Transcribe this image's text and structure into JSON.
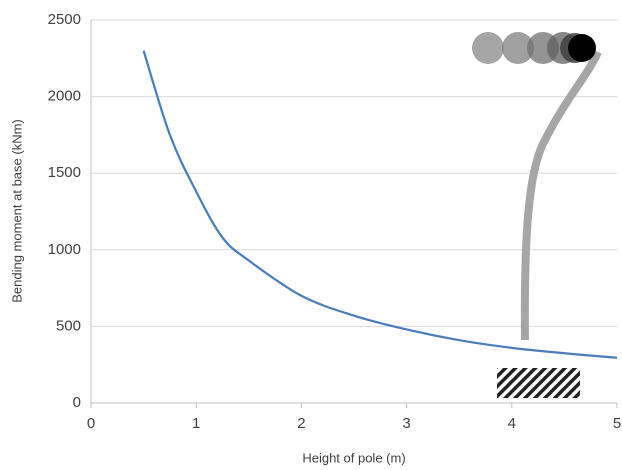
{
  "chart_data": {
    "type": "line",
    "x_label": "Height of pole (m)",
    "y_label": "Bending moment at base (kNm)",
    "x": [
      0.5,
      0.75,
      1,
      1.25,
      1.5,
      2,
      2.5,
      3,
      3.5,
      4,
      4.5,
      5
    ],
    "values": [
      2300,
      1750,
      1380,
      1080,
      930,
      700,
      570,
      480,
      410,
      360,
      325,
      295
    ],
    "color": "#4a7ebb",
    "xlim": [
      0,
      5
    ],
    "xticks": [
      0,
      1,
      2,
      3,
      4,
      5
    ],
    "ylim": [
      0,
      2500
    ],
    "yticks": [
      0,
      500,
      1000,
      1500,
      2000,
      2500
    ],
    "grid": true
  }
}
